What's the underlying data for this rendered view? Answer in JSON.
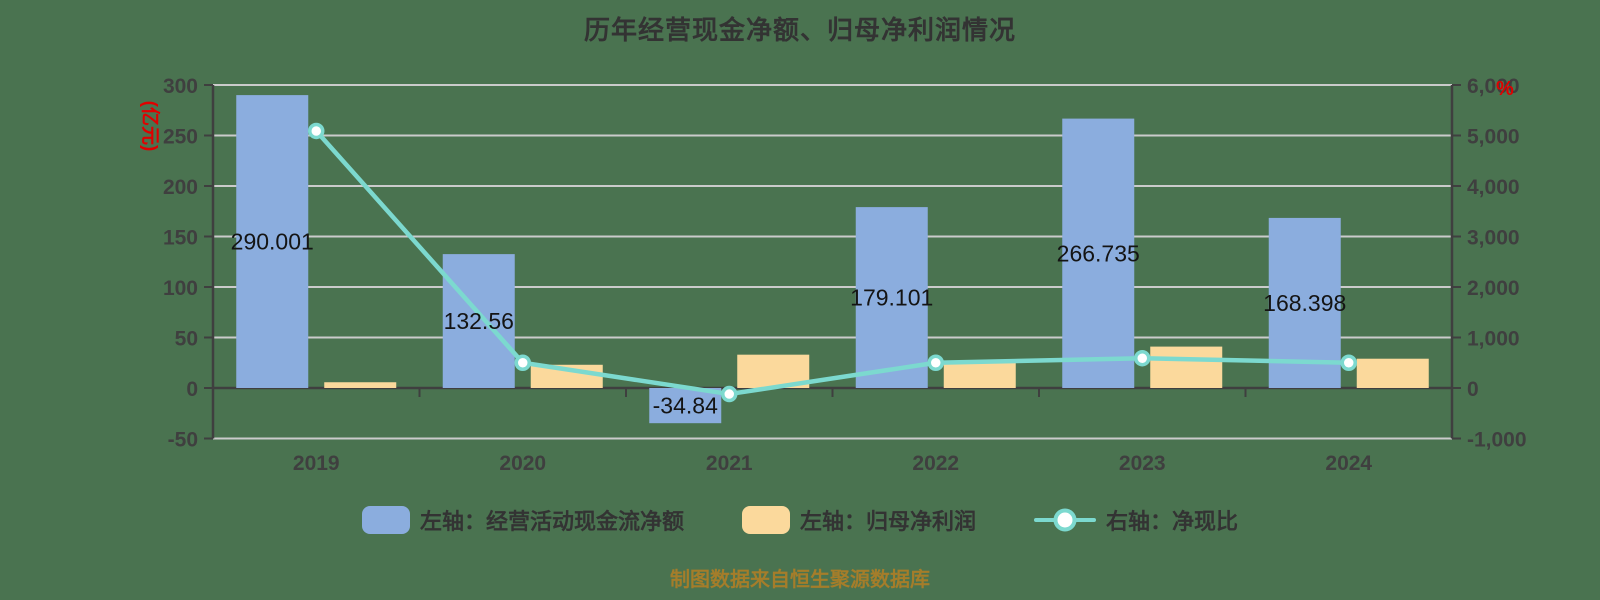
{
  "page": {
    "background_color": "#4a7350"
  },
  "title": "历年经营现金净额、归母净利润情况",
  "footer": {
    "text": "制图数据来自恒生聚源数据库",
    "color": "#a57d2a"
  },
  "chart_data": {
    "type": "bar",
    "subtype": "dual-axis bar + line combo",
    "title": "历年经营现金净额、归母净利润情况",
    "categories": [
      "2019",
      "2020",
      "2021",
      "2022",
      "2023",
      "2024"
    ],
    "left_axis": {
      "unit": "(亿元)",
      "unit_color": "#e00000",
      "range": [
        -50,
        300
      ],
      "ticks": [
        {
          "v": 300,
          "label": "300"
        },
        {
          "v": 250,
          "label": "250"
        },
        {
          "v": 200,
          "label": "200"
        },
        {
          "v": 150,
          "label": "150"
        },
        {
          "v": 100,
          "label": "100"
        },
        {
          "v": 50,
          "label": "50"
        },
        {
          "v": 0,
          "label": "0"
        },
        {
          "v": -50,
          "label": "-50"
        }
      ]
    },
    "right_axis": {
      "unit": "%",
      "unit_color": "#e00000",
      "range": [
        -1000,
        6000
      ],
      "ticks": [
        {
          "v": 6000,
          "label": "6,000"
        },
        {
          "v": 5000,
          "label": "5,000"
        },
        {
          "v": 4000,
          "label": "4,000"
        },
        {
          "v": 3000,
          "label": "3,000"
        },
        {
          "v": 2000,
          "label": "2,000"
        },
        {
          "v": 1000,
          "label": "1,000"
        },
        {
          "v": 0,
          "label": "0"
        },
        {
          "v": -1000,
          "label": "-1,000"
        }
      ]
    },
    "series": [
      {
        "name": "左轴：经营活动现金流净额",
        "type": "bar",
        "axis": "left",
        "color": "#8badde",
        "values": [
          290.001,
          132.56,
          -34.84,
          179.101,
          266.735,
          168.398
        ],
        "labels": [
          "290.001",
          "132.56",
          "-34.84",
          "179.101",
          "266.735",
          "168.398"
        ]
      },
      {
        "name": "左轴：归母净利润",
        "type": "bar",
        "axis": "left",
        "color": "#fbd99c",
        "values": [
          5.7,
          23,
          33,
          26,
          41,
          29
        ],
        "labels": []
      },
      {
        "name": "右轴：净现比",
        "type": "line",
        "axis": "right",
        "color": "#7cd9cf",
        "marker_fill": "#ffffff",
        "values": [
          5090,
          500,
          -120,
          500,
          590,
          500
        ]
      }
    ],
    "grid": true,
    "grid_color": "#cbcbcb",
    "axis_color": "#3f3f3f",
    "label_color": "#141414",
    "legend_position": "bottom"
  }
}
